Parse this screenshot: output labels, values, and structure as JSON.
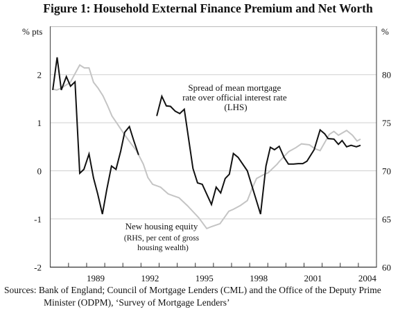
{
  "chart_data": {
    "type": "line",
    "title": "Figure 1: Household External Finance Premium and Net Worth",
    "left_axis": {
      "unit_label": "% pts",
      "range": [
        -2,
        3
      ],
      "ticks": [
        "-2",
        "-1",
        "0",
        "1",
        "2"
      ],
      "tick_values": [
        -2,
        -1,
        0,
        1,
        2
      ]
    },
    "right_axis": {
      "unit_label": "%",
      "range": [
        60,
        85
      ],
      "ticks": [
        "60",
        "65",
        "70",
        "75",
        "80"
      ],
      "tick_values": [
        60,
        65,
        70,
        75,
        80
      ]
    },
    "x_axis": {
      "range": [
        1987,
        2005
      ],
      "labels": [
        "1989",
        "1992",
        "1995",
        "1998",
        "2001",
        "2004"
      ],
      "label_years": [
        1989,
        1992,
        1995,
        1998,
        2001,
        2004
      ]
    },
    "grid": true,
    "series": [
      {
        "name": "Spread of mean mortgage rate over official interest rate (LHS)",
        "label_lines": [
          "Spread of mean mortgage",
          "rate over official interest rate",
          "(LHS)"
        ],
        "axis": "left",
        "color": "#111111",
        "segments": [
          {
            "x": [
              1987.13,
              1987.37,
              1987.6,
              1987.88,
              1988.11,
              1988.36,
              1988.62,
              1988.85,
              1989.13,
              1989.38,
              1989.61,
              1989.87,
              1990.11,
              1990.37,
              1990.62,
              1990.88,
              1991.1,
              1991.36,
              1991.61,
              1991.87
            ],
            "y": [
              1.68,
              2.36,
              1.68,
              1.96,
              1.76,
              1.85,
              -0.05,
              0.03,
              0.35,
              -0.15,
              -0.48,
              -0.9,
              -0.39,
              0.1,
              0.03,
              0.41,
              0.8,
              0.92,
              0.62,
              0.33
            ]
          },
          {
            "x": [
              1992.87,
              1993.15,
              1993.4,
              1993.63,
              1993.89,
              1994.14,
              1994.39,
              1994.87,
              1995.12,
              1995.38,
              1995.89,
              1996.15,
              1996.4,
              1996.65,
              1996.88,
              1997.1,
              1997.36,
              1997.87,
              1998.6,
              1998.9,
              1999.14,
              1999.37,
              1999.63,
              1999.9,
              2000.14,
              2000.42,
              2000.68,
              2000.93,
              2001.16,
              2001.56,
              2001.89,
              2002.14,
              2002.33,
              2002.65,
              2002.9,
              2003.1,
              2003.35,
              2003.6,
              2003.89,
              2004.12
            ],
            "y": [
              1.14,
              1.55,
              1.35,
              1.34,
              1.24,
              1.19,
              1.28,
              0.05,
              -0.25,
              -0.28,
              -0.7,
              -0.34,
              -0.46,
              -0.16,
              -0.07,
              0.36,
              0.28,
              0.0,
              -0.9,
              0.1,
              0.49,
              0.44,
              0.51,
              0.28,
              0.14,
              0.14,
              0.15,
              0.15,
              0.2,
              0.44,
              0.85,
              0.77,
              0.67,
              0.66,
              0.55,
              0.63,
              0.5,
              0.53,
              0.5,
              0.53
            ]
          }
        ]
      },
      {
        "name": "New housing equity (RHS, per cent of gross housing wealth)",
        "label_lines": [
          "New housing equity",
          "(RHS, per cent of gross",
          "housing wealth)"
        ],
        "axis": "right",
        "color": "#c4c4c4",
        "segments": [
          {
            "x": [
              1987.13,
              1987.35,
              1987.6,
              1988.1,
              1988.62,
              1988.87,
              1989.13,
              1989.38,
              1989.63,
              1989.9,
              1990.15,
              1990.4,
              1990.65,
              1990.9,
              1991.15,
              1991.42,
              1991.75,
              1992.13,
              1992.38,
              1992.64,
              1993.08,
              1993.5,
              1993.79,
              1994.1,
              1994.55,
              1995.2,
              1995.63,
              1995.89,
              1996.36,
              1996.85,
              1997.1,
              1997.49,
              1997.87,
              1998.12,
              1998.38,
              1998.76,
              1999.02,
              1999.52,
              1999.65,
              2000.16,
              2000.54,
              2000.86,
              2001.3,
              2001.6,
              2001.89,
              2002.4,
              2002.65,
              2002.9,
              2003.35,
              2003.67,
              2003.93,
              2004.12
            ],
            "y": [
              78.5,
              78.4,
              78.6,
              79.2,
              81.0,
              80.7,
              80.7,
              79.2,
              78.6,
              77.8,
              76.8,
              75.7,
              75.0,
              74.3,
              73.6,
              72.9,
              72.1,
              70.7,
              69.3,
              68.6,
              68.3,
              67.6,
              67.4,
              67.2,
              66.4,
              65.1,
              64.0,
              64.2,
              64.5,
              65.8,
              66.0,
              66.4,
              66.9,
              68.1,
              69.2,
              69.6,
              69.8,
              70.7,
              71.0,
              72.0,
              72.4,
              72.8,
              72.7,
              72.3,
              72.1,
              73.8,
              74.1,
              73.7,
              74.2,
              73.7,
              73.1,
              73.3
            ]
          }
        ]
      }
    ]
  },
  "sources": {
    "line1": "Sources:  Bank of England; Council of Mortgage Lenders (CML) and the Office of the Deputy Prime",
    "line2": "Minister (ODPM), ‘Survey of Mortgage Lenders’"
  }
}
